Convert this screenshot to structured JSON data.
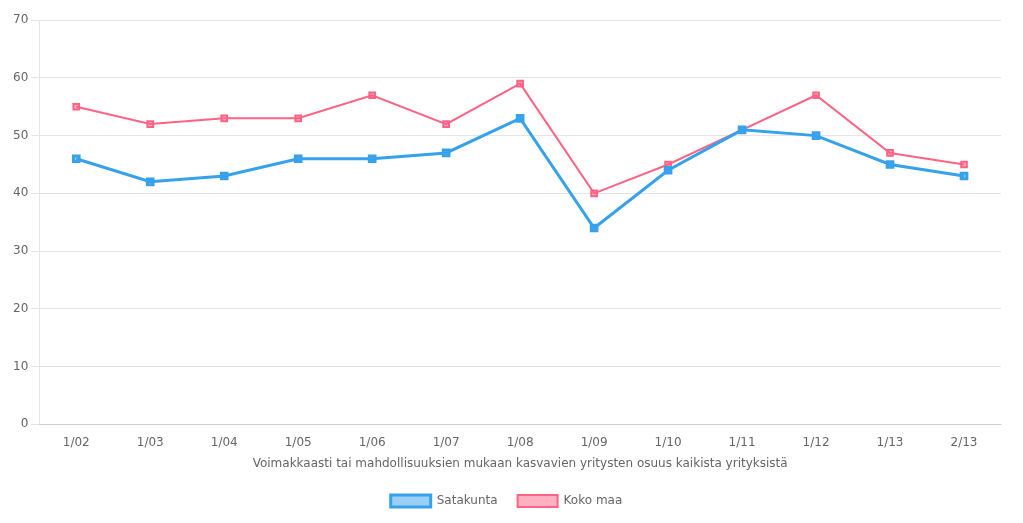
{
  "chart_data": {
    "type": "line",
    "xlabel": "Voimakkaasti tai mahdollisuuksien mukaan kasvavien yritysten osuus kaikista yrityksistä",
    "categories": [
      "1/02",
      "1/03",
      "1/04",
      "1/05",
      "1/06",
      "1/07",
      "1/08",
      "1/09",
      "1/10",
      "1/11",
      "1/12",
      "1/13",
      "2/13"
    ],
    "series": [
      {
        "name": "Satakunta",
        "values": [
          46,
          42,
          43,
          46,
          46,
          47,
          53,
          34,
          44,
          51,
          50,
          45,
          43
        ]
      },
      {
        "name": "Koko maa",
        "values": [
          55,
          52,
          53,
          53,
          57,
          52,
          59,
          40,
          45,
          51,
          57,
          47,
          45
        ]
      }
    ],
    "ylim": [
      0,
      70
    ],
    "yticks": [
      0,
      10,
      20,
      30,
      40,
      50,
      60,
      70
    ],
    "grid": true,
    "legend": "bottom",
    "marker": "square"
  }
}
